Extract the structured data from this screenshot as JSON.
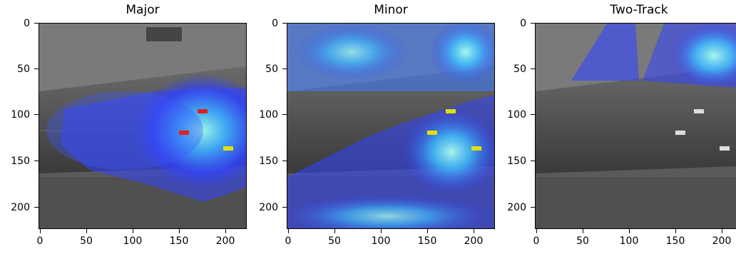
{
  "figure": {
    "axis_ticks": {
      "y": [
        "0",
        "50",
        "100",
        "150",
        "200"
      ],
      "x": [
        "0",
        "50",
        "100",
        "150",
        "200"
      ]
    },
    "panels": [
      {
        "id": "major",
        "title": "Major",
        "heat_focus": "road-right-vehicles"
      },
      {
        "id": "minor",
        "title": "Minor",
        "heat_focus": "top-and-bottom"
      },
      {
        "id": "two-track",
        "title": "Two-Track",
        "heat_focus": "top-right"
      }
    ],
    "colors": {
      "heat_low": "#2a3bff",
      "heat_mid": "#33b8ff",
      "heat_high": "#7fffd4",
      "aerial_dark": "#3a3a3a",
      "aerial_light": "#8a8a8a"
    }
  }
}
